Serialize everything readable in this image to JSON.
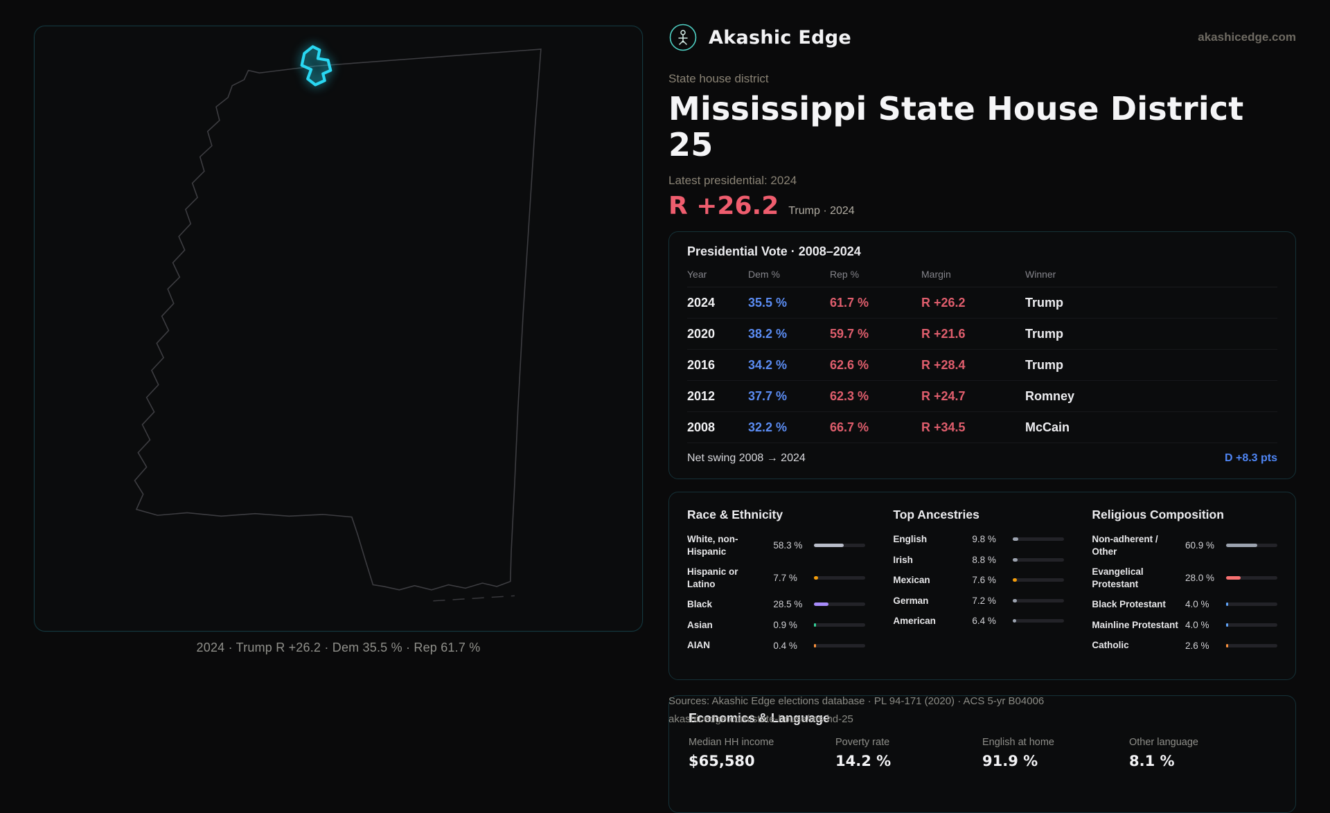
{
  "brand": {
    "name": "Akashic Edge",
    "domain": "akashicedge.com"
  },
  "map": {
    "caption": "2024 · Trump R +26.2 · Dem 35.5 % · Rep 61.7 %"
  },
  "header": {
    "eyebrow": "State house district",
    "title": "Mississippi State House District 25",
    "latest_label": "Latest presidential: 2024",
    "headline_margin": "R +26.2",
    "headline_sub": "Trump · 2024"
  },
  "pres_table": {
    "title": "Presidential Vote · 2008–2024",
    "columns": [
      "Year",
      "Dem %",
      "Rep %",
      "Margin",
      "Winner"
    ],
    "rows": [
      {
        "year": "2024",
        "dem": "35.5 %",
        "rep": "61.7 %",
        "margin": "R +26.2",
        "winner": "Trump"
      },
      {
        "year": "2020",
        "dem": "38.2 %",
        "rep": "59.7 %",
        "margin": "R +21.6",
        "winner": "Trump"
      },
      {
        "year": "2016",
        "dem": "34.2 %",
        "rep": "62.6 %",
        "margin": "R +28.4",
        "winner": "Trump"
      },
      {
        "year": "2012",
        "dem": "37.7 %",
        "rep": "62.3 %",
        "margin": "R +24.7",
        "winner": "Romney"
      },
      {
        "year": "2008",
        "dem": "32.2 %",
        "rep": "66.7 %",
        "margin": "R +34.5",
        "winner": "McCain"
      }
    ],
    "footer_label": "Net swing 2008 → 2024",
    "footer_value": "D +8.3 pts"
  },
  "demographics": {
    "sections": [
      {
        "title": "Race & Ethnicity",
        "rows": [
          {
            "label": "White, non-Hispanic",
            "value": "58.3 %",
            "pct": 58.3,
            "color": "#b9bdc9"
          },
          {
            "label": "Hispanic or Latino",
            "value": "7.7 %",
            "pct": 7.7,
            "color": "#f59e0b"
          },
          {
            "label": "Black",
            "value": "28.5 %",
            "pct": 28.5,
            "color": "#a78bfa"
          },
          {
            "label": "Asian",
            "value": "0.9 %",
            "pct": 0.9,
            "color": "#34d399"
          },
          {
            "label": "AIAN",
            "value": "0.4 %",
            "pct": 0.4,
            "color": "#fb923c"
          }
        ]
      },
      {
        "title": "Top Ancestries",
        "rows": [
          {
            "label": "English",
            "value": "9.8 %",
            "pct": 9.8,
            "color": "#9ca3af"
          },
          {
            "label": "Irish",
            "value": "8.8 %",
            "pct": 8.8,
            "color": "#9ca3af"
          },
          {
            "label": "Mexican",
            "value": "7.6 %",
            "pct": 7.6,
            "color": "#f59e0b"
          },
          {
            "label": "German",
            "value": "7.2 %",
            "pct": 7.2,
            "color": "#9ca3af"
          },
          {
            "label": "American",
            "value": "6.4 %",
            "pct": 6.4,
            "color": "#9ca3af"
          }
        ]
      },
      {
        "title": "Religious Composition",
        "rows": [
          {
            "label": "Non-adherent / Other",
            "value": "60.9 %",
            "pct": 60.9,
            "color": "#9ca3af"
          },
          {
            "label": "Evangelical Protestant",
            "value": "28.0 %",
            "pct": 28.0,
            "color": "#f87171"
          },
          {
            "label": "Black Protestant",
            "value": "4.0 %",
            "pct": 4.0,
            "color": "#60a5fa"
          },
          {
            "label": "Mainline Protestant",
            "value": "4.0 %",
            "pct": 4.0,
            "color": "#60a5fa"
          },
          {
            "label": "Catholic",
            "value": "2.6 %",
            "pct": 2.6,
            "color": "#fb923c"
          }
        ]
      }
    ]
  },
  "economics": {
    "title": "Economics & Language",
    "stats": [
      {
        "label": "Median HH income",
        "value": "$65,580"
      },
      {
        "label": "Poverty rate",
        "value": "14.2 %"
      },
      {
        "label": "English at home",
        "value": "91.9 %"
      },
      {
        "label": "Other language",
        "value": "8.1 %"
      }
    ]
  },
  "sources": {
    "line1": "Sources: Akashic Edge elections database · PL 94-171 (2020) · ACS 5-yr B04006",
    "line2": "akashicedge.com/state-house/ms-hd-25"
  },
  "colors": {
    "accent_cyan": "#29d7f2",
    "rep_red": "#e05e6d",
    "dem_blue": "#5b8cf2",
    "headline_red": "#ef5d6e",
    "swing_blue": "#4f86f5"
  }
}
